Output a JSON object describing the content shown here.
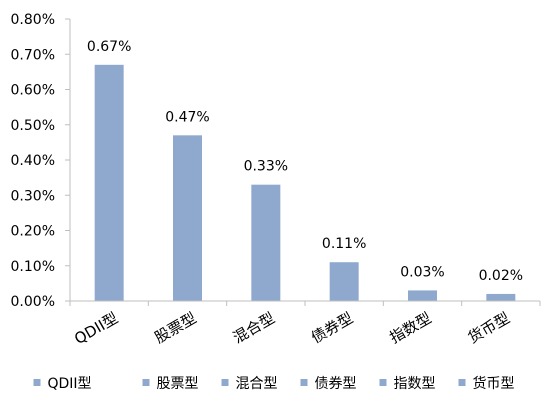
{
  "chart_data": {
    "type": "bar",
    "categories": [
      "QDII型",
      "股票型",
      "混合型",
      "债券型",
      "指数型",
      "货币型"
    ],
    "values": [
      0.67,
      0.47,
      0.33,
      0.11,
      0.03,
      0.02
    ],
    "data_labels": [
      "0.67%",
      "0.47%",
      "0.33%",
      "0.11%",
      "0.03%",
      "0.02%"
    ],
    "yticks": [
      {
        "value": 0.0,
        "label": "0.00%"
      },
      {
        "value": 0.1,
        "label": "0.10%"
      },
      {
        "value": 0.2,
        "label": "0.20%"
      },
      {
        "value": 0.3,
        "label": "0.30%"
      },
      {
        "value": 0.4,
        "label": "0.40%"
      },
      {
        "value": 0.5,
        "label": "0.50%"
      },
      {
        "value": 0.6,
        "label": "0.60%"
      },
      {
        "value": 0.7,
        "label": "0.70%"
      },
      {
        "value": 0.8,
        "label": "0.80%"
      }
    ],
    "ylim": [
      0,
      0.8
    ],
    "title": "",
    "xlabel": "",
    "ylabel": "",
    "grid": false,
    "legend_position": "bottom",
    "x_tick_label_rotation": "angled",
    "legend": [
      "QDII型",
      "股票型",
      "混合型",
      "债券型",
      "指数型",
      "货币型"
    ],
    "colors": {
      "bar": "#8EA9CD",
      "axis": "#BFBFBF",
      "text": "#000000"
    }
  }
}
